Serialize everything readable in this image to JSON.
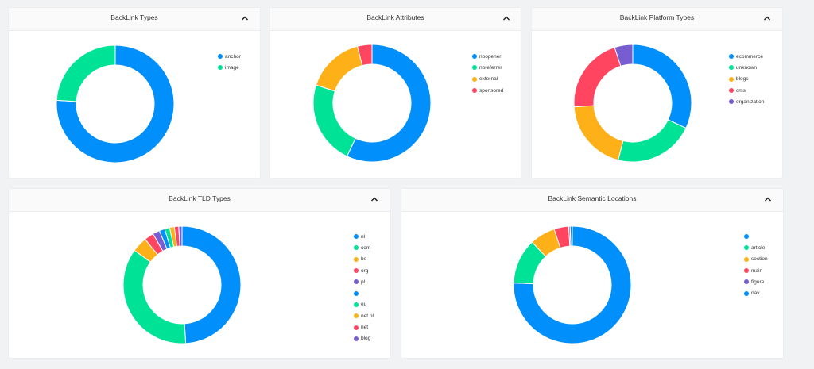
{
  "colors": {
    "blue": "#008ffb",
    "green": "#00e396",
    "orange": "#feb019",
    "red": "#ff4560",
    "purple": "#775dd0"
  },
  "collapse_icon": "chevron-up-icon",
  "chart_data": [
    {
      "type": "pie",
      "title": "BackLink Types",
      "categories": [
        "anchor",
        "image"
      ],
      "values": [
        76,
        24
      ],
      "legend": "right"
    },
    {
      "type": "pie",
      "title": "BackLink Attributes",
      "categories": [
        "noopener",
        "noreferrer",
        "external",
        "sponsored"
      ],
      "values": [
        57,
        23,
        16,
        4
      ],
      "legend": "right"
    },
    {
      "type": "pie",
      "title": "BackLink Platform Types",
      "categories": [
        "ecommerce",
        "unknown",
        "blogs",
        "cms",
        "organization"
      ],
      "values": [
        32,
        22,
        20,
        21,
        5
      ],
      "legend": "right"
    },
    {
      "type": "pie",
      "title": "BackLink TLD Types",
      "categories": [
        "nl",
        "com",
        "be",
        "org",
        "pl",
        "",
        "eu",
        "net.pl",
        "net",
        "blog"
      ],
      "values": [
        49,
        36,
        4.2,
        2.6,
        1.9,
        1.5,
        1.4,
        1.3,
        1.2,
        0.9
      ],
      "legend": "right"
    },
    {
      "type": "pie",
      "title": "BackLink Semantic Locations",
      "categories": [
        "",
        "article",
        "section",
        "main",
        "figure",
        "nav"
      ],
      "values": [
        75.5,
        12.5,
        7,
        4,
        0.4,
        0.6
      ],
      "legend": "right"
    }
  ]
}
